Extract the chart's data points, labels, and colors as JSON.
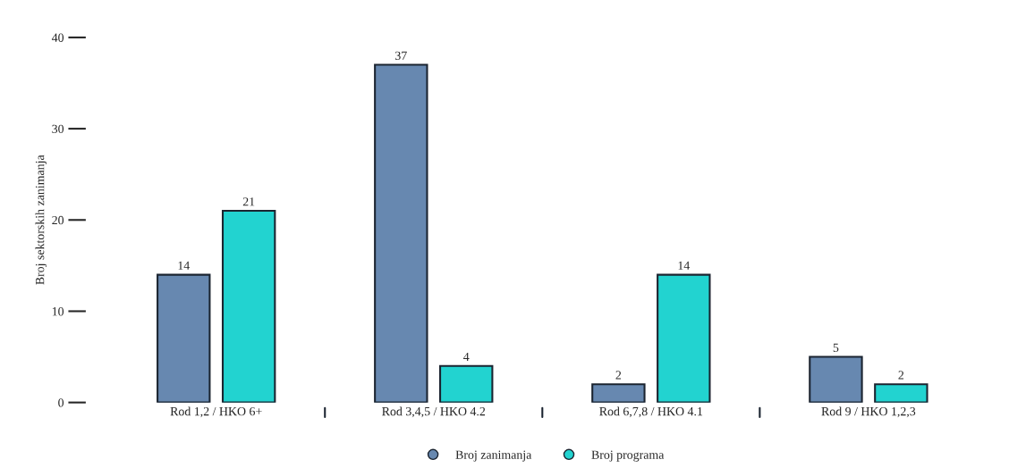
{
  "chart_data": {
    "type": "bar",
    "ylabel": "Broj sektorskih zanimanja",
    "categories": [
      "Rod 1,2 / HKO 6+",
      "Rod 3,4,5 / HKO 4.2",
      "Rod 6,7,8 / HKO 4.1",
      "Rod 9 / HKO 1,2,3"
    ],
    "series": [
      {
        "name": "Broj zanimanja",
        "color": "#6788b0",
        "values": [
          14,
          37,
          2,
          5
        ]
      },
      {
        "name": "Broj programa",
        "color": "#22d3d0",
        "values": [
          21,
          4,
          14,
          2
        ]
      }
    ],
    "ylim": [
      0,
      40
    ],
    "yticks": [
      0,
      10,
      20,
      30,
      40
    ],
    "data_labels": true,
    "grid": false,
    "legend": "bottom",
    "marker": "circle"
  }
}
